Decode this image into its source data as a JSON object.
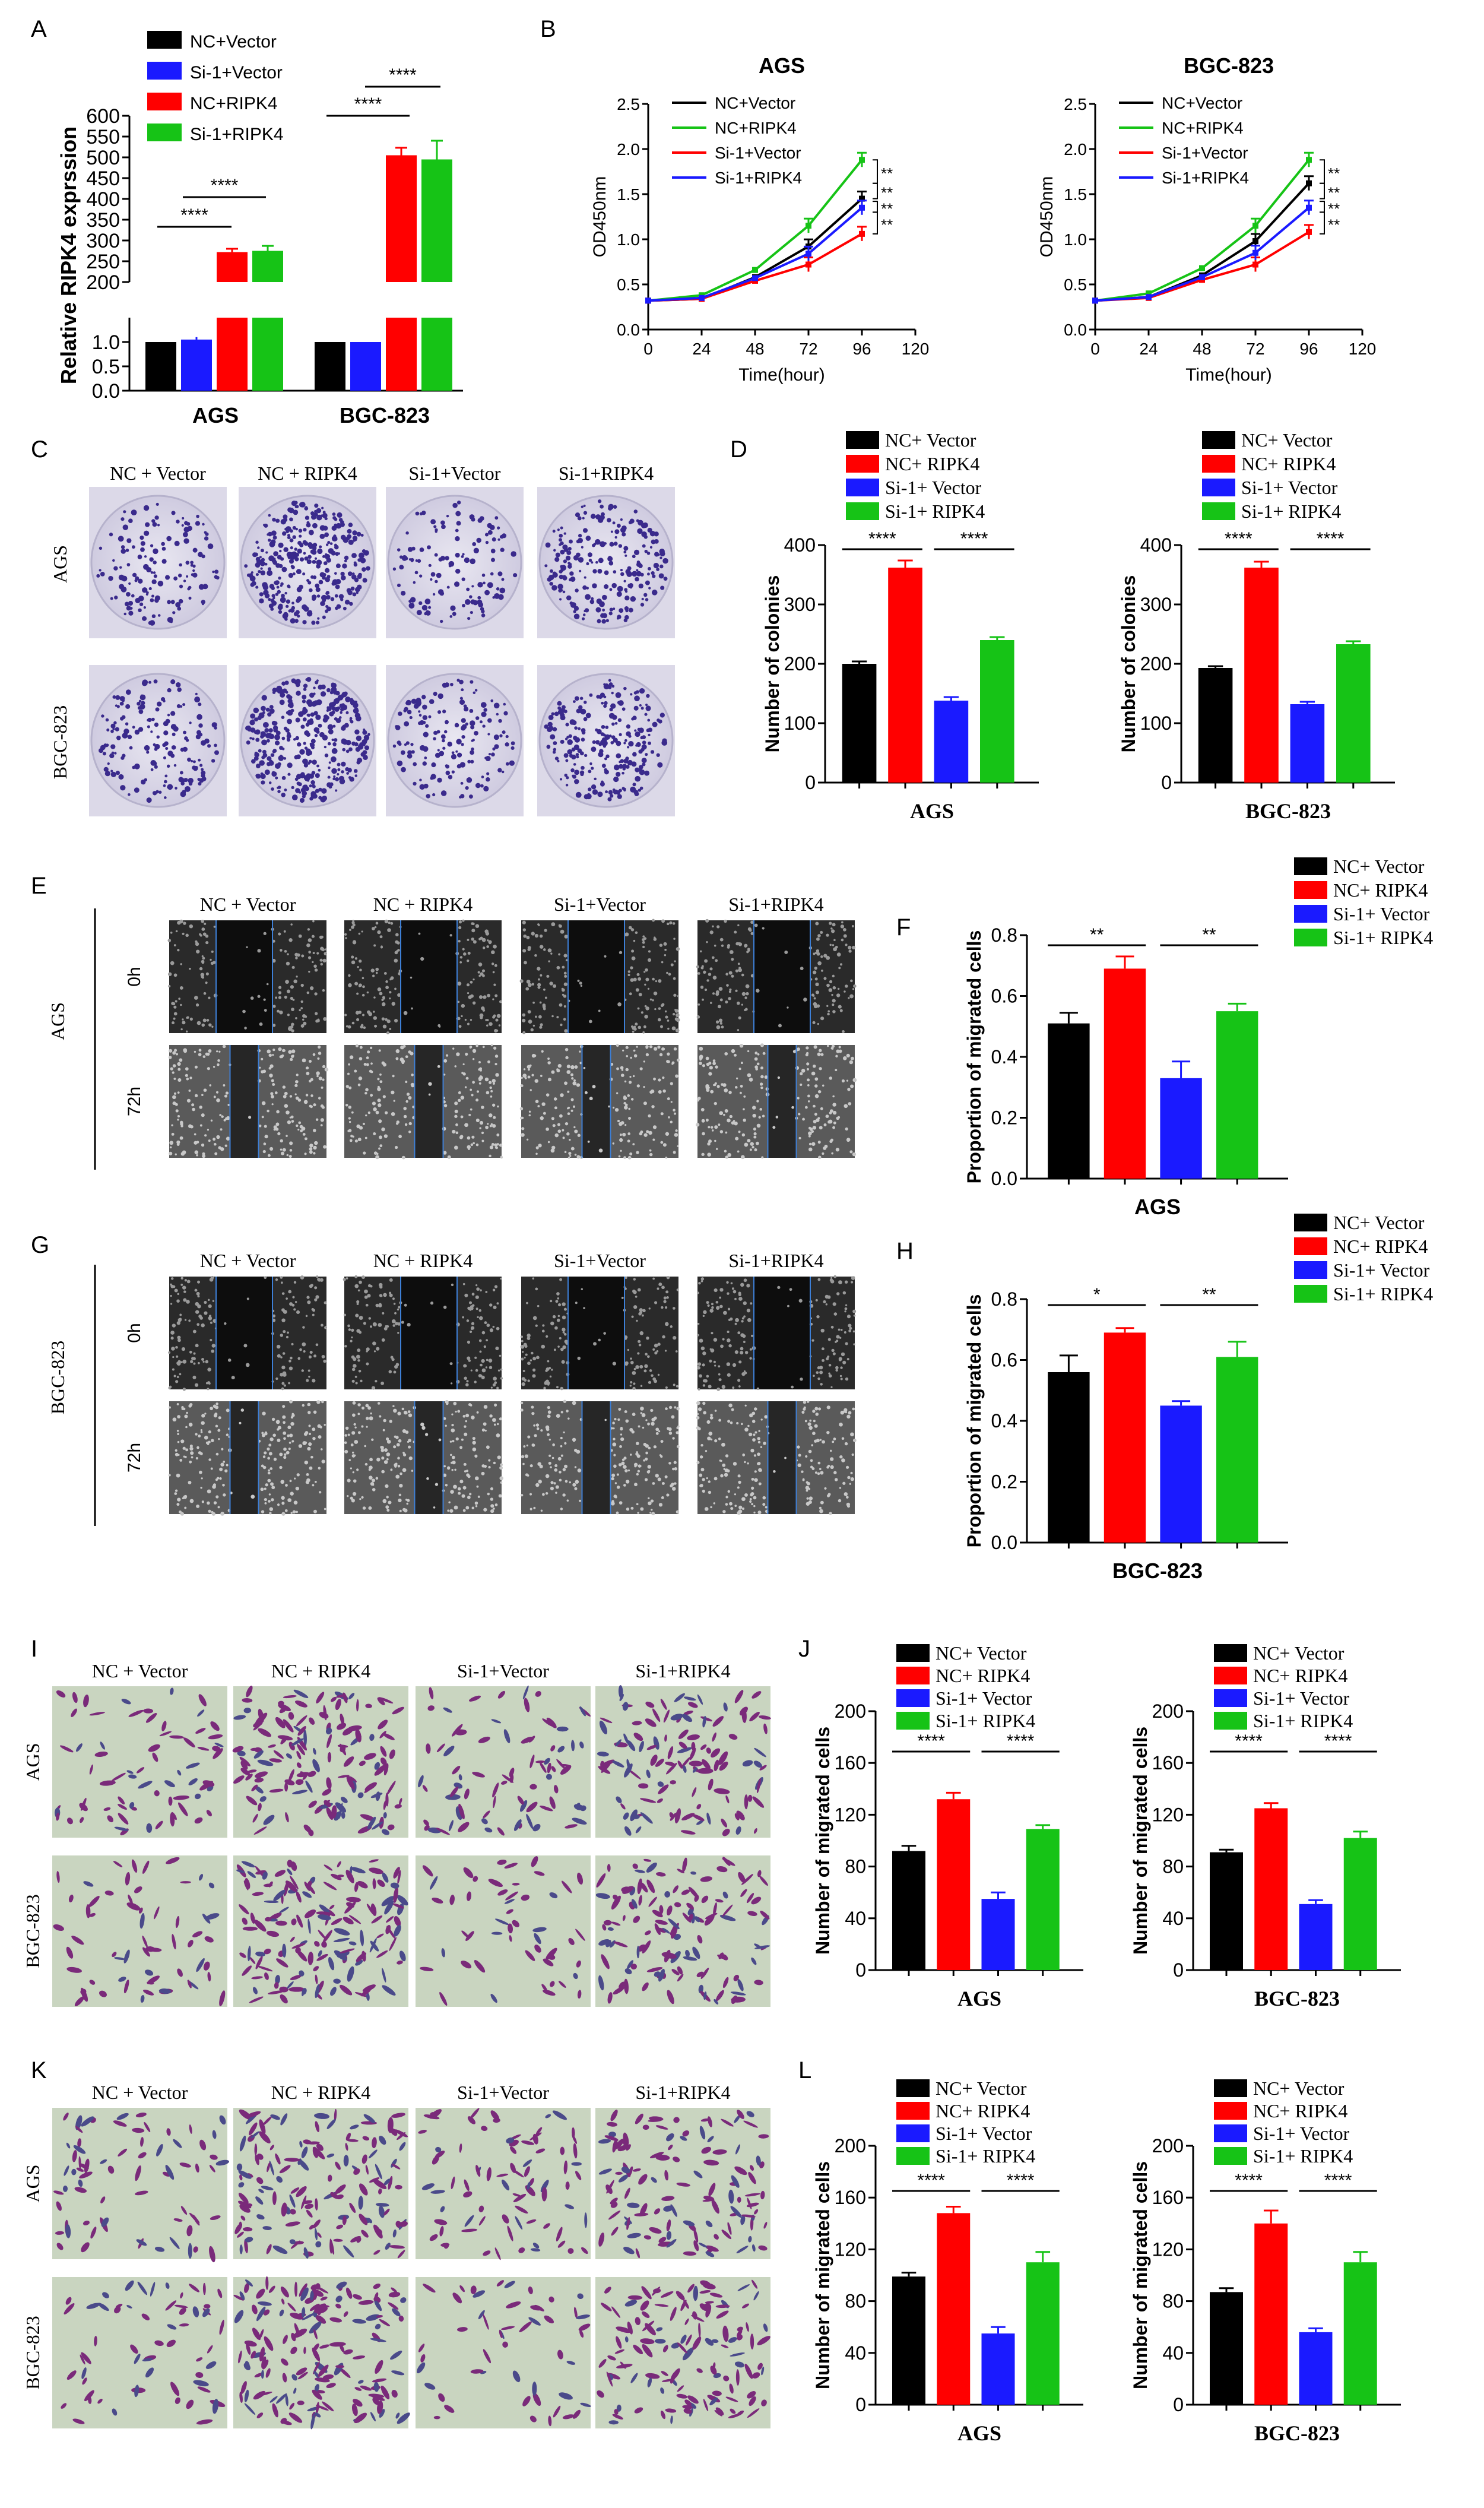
{
  "colors": {
    "black": "#000000",
    "red": "#ff0000",
    "blue": "#1a1aff",
    "green": "#16c316"
  },
  "panels": {
    "A": {
      "letter": "A",
      "ylabel": "Relative RIPK4 exprssion"
    },
    "B": {
      "letter": "B"
    },
    "C": {
      "letter": "C",
      "cols": [
        "NC + Vector",
        "NC + RIPK4",
        "Si-1+Vector",
        "Si-1+RIPK4"
      ],
      "rows": [
        "AGS",
        "BGC-823"
      ]
    },
    "D": {
      "letter": "D"
    },
    "E": {
      "letter": "E",
      "cell": "AGS",
      "cols": [
        "NC + Vector",
        "NC + RIPK4",
        "Si-1+Vector",
        "Si-1+RIPK4"
      ],
      "rows": [
        "0h",
        "72h"
      ]
    },
    "F": {
      "letter": "F"
    },
    "G": {
      "letter": "G",
      "cell": "BGC-823",
      "cols": [
        "NC + Vector",
        "NC + RIPK4",
        "Si-1+Vector",
        "Si-1+RIPK4"
      ],
      "rows": [
        "0h",
        "72h"
      ]
    },
    "H": {
      "letter": "H"
    },
    "I": {
      "letter": "I",
      "cols": [
        "NC + Vector",
        "NC + RIPK4",
        "Si-1+Vector",
        "Si-1+RIPK4"
      ],
      "rows": [
        "AGS",
        "BGC-823"
      ]
    },
    "J": {
      "letter": "J"
    },
    "K": {
      "letter": "K",
      "cols": [
        "NC + Vector",
        "NC + RIPK4",
        "Si-1+Vector",
        "Si-1+RIPK4"
      ],
      "rows": [
        "AGS",
        "BGC-823"
      ]
    },
    "L": {
      "letter": "L"
    }
  },
  "chart_data": [
    {
      "panel": "A",
      "type": "bar",
      "groups": [
        "AGS",
        "BGC-823"
      ],
      "series": [
        {
          "name": "NC+Vector",
          "values": [
            1.0,
            1.0
          ],
          "err": [
            0,
            0
          ]
        },
        {
          "name": "Si-1+Vector",
          "values": [
            1.05,
            1.0
          ],
          "err": [
            0.05,
            0
          ]
        },
        {
          "name": "NC+RIPK4",
          "values": [
            272,
            505
          ],
          "err": [
            8,
            18
          ]
        },
        {
          "name": "Si-1+RIPK4",
          "values": [
            275,
            495
          ],
          "err": [
            12,
            45
          ]
        }
      ],
      "ylabel": "Relative RIPK4 exprssion",
      "broken_axis": {
        "lower": [
          0,
          1.5
        ],
        "upper": [
          200,
          600
        ]
      },
      "yticks_lower": [
        "0.0",
        "0.5",
        "1.0"
      ],
      "yticks_upper": [
        "200",
        "250",
        "300",
        "350",
        "400",
        "450",
        "500",
        "550",
        "600"
      ],
      "sig": [
        "****",
        "****",
        "****",
        "****"
      ]
    },
    {
      "panel": "B1",
      "type": "line",
      "title": "AGS",
      "xlabel": "Time(hour)",
      "ylabel": "OD450nm",
      "x": [
        0,
        24,
        48,
        72,
        96
      ],
      "xticks": [
        "0",
        "24",
        "48",
        "72",
        "96",
        "120"
      ],
      "yticks": [
        "0.0",
        "0.5",
        "1.0",
        "1.5",
        "2.0",
        "2.5"
      ],
      "xlim": [
        0,
        120
      ],
      "ylim": [
        0,
        2.5
      ],
      "series": [
        {
          "name": "NC+Vector",
          "color": "#000000",
          "values": [
            0.32,
            0.34,
            0.58,
            0.92,
            1.45
          ]
        },
        {
          "name": "NC+RIPK4",
          "color": "#16c316",
          "values": [
            0.32,
            0.38,
            0.66,
            1.15,
            1.88
          ]
        },
        {
          "name": "Si-1+Vector",
          "color": "#ff0000",
          "values": [
            0.32,
            0.34,
            0.54,
            0.72,
            1.06
          ]
        },
        {
          "name": "Si-1+RIPK4",
          "color": "#1a1aff",
          "values": [
            0.32,
            0.35,
            0.57,
            0.84,
            1.35
          ]
        }
      ],
      "sig": [
        "**",
        "**",
        "**",
        "**"
      ]
    },
    {
      "panel": "B2",
      "type": "line",
      "title": "BGC-823",
      "xlabel": "Time(hour)",
      "ylabel": "OD450nm",
      "x": [
        0,
        24,
        48,
        72,
        96
      ],
      "xticks": [
        "0",
        "24",
        "48",
        "72",
        "96",
        "120"
      ],
      "yticks": [
        "0.0",
        "0.5",
        "1.0",
        "1.5",
        "2.0",
        "2.5"
      ],
      "xlim": [
        0,
        120
      ],
      "ylim": [
        0,
        2.5
      ],
      "series": [
        {
          "name": "NC+Vector",
          "color": "#000000",
          "values": [
            0.32,
            0.36,
            0.6,
            0.98,
            1.62
          ]
        },
        {
          "name": "NC+RIPK4",
          "color": "#16c316",
          "values": [
            0.32,
            0.4,
            0.68,
            1.15,
            1.88
          ]
        },
        {
          "name": "Si-1+Vector",
          "color": "#ff0000",
          "values": [
            0.32,
            0.35,
            0.55,
            0.72,
            1.08
          ]
        },
        {
          "name": "Si-1+RIPK4",
          "color": "#1a1aff",
          "values": [
            0.32,
            0.36,
            0.58,
            0.85,
            1.35
          ]
        }
      ],
      "sig": [
        "**",
        "**",
        "**",
        "**"
      ]
    },
    {
      "panel": "D1",
      "type": "bar",
      "xlabel": "AGS",
      "ylabel": "Number of colonies",
      "legend": [
        "NC+ Vector",
        "NC+ RIPK4",
        "Si-1+ Vector",
        "Si-1+ RIPK4"
      ],
      "values": [
        200,
        362,
        138,
        240
      ],
      "err": [
        4,
        12,
        6,
        5
      ],
      "ylim": [
        0,
        400
      ],
      "yticks": [
        "0",
        "100",
        "200",
        "300",
        "400"
      ],
      "sig": [
        "****",
        "****"
      ]
    },
    {
      "panel": "D2",
      "type": "bar",
      "xlabel": "BGC-823",
      "ylabel": "Number of colonies",
      "legend": [
        "NC+ Vector",
        "NC+ RIPK4",
        "Si-1+ Vector",
        "Si-1+ RIPK4"
      ],
      "values": [
        193,
        362,
        132,
        233
      ],
      "err": [
        3,
        10,
        4,
        5
      ],
      "ylim": [
        0,
        400
      ],
      "yticks": [
        "0",
        "100",
        "200",
        "300",
        "400"
      ],
      "sig": [
        "****",
        "****"
      ]
    },
    {
      "panel": "F",
      "type": "bar",
      "xlabel": "AGS",
      "ylabel": "Proportion of migrated cells",
      "legend": [
        "NC+ Vector",
        "NC+ RIPK4",
        "Si-1+ Vector",
        "Si-1+ RIPK4"
      ],
      "values": [
        0.51,
        0.69,
        0.33,
        0.55
      ],
      "err": [
        0.035,
        0.04,
        0.055,
        0.025
      ],
      "ylim": [
        0,
        0.8
      ],
      "yticks": [
        "0.0",
        "0.2",
        "0.4",
        "0.6",
        "0.8"
      ],
      "sig": [
        "**",
        "**"
      ]
    },
    {
      "panel": "H",
      "type": "bar",
      "xlabel": "BGC-823",
      "ylabel": "Proportion of migrated cells",
      "legend": [
        "NC+ Vector",
        "NC+ RIPK4",
        "Si-1+ Vector",
        "Si-1+ RIPK4"
      ],
      "values": [
        0.56,
        0.69,
        0.45,
        0.61
      ],
      "err": [
        0.055,
        0.015,
        0.015,
        0.05
      ],
      "ylim": [
        0,
        0.8
      ],
      "yticks": [
        "0.0",
        "0.2",
        "0.4",
        "0.6",
        "0.8"
      ],
      "sig": [
        "*",
        "**"
      ]
    },
    {
      "panel": "J1",
      "type": "bar",
      "xlabel": "AGS",
      "ylabel": "Number of migrated cells",
      "legend": [
        "NC+ Vector",
        "NC+ RIPK4",
        "Si-1+ Vector",
        "Si-1+ RIPK4"
      ],
      "values": [
        92,
        132,
        55,
        109
      ],
      "err": [
        4,
        5,
        5,
        3
      ],
      "ylim": [
        0,
        200
      ],
      "yticks": [
        "0",
        "40",
        "80",
        "120",
        "160",
        "200"
      ],
      "sig": [
        "****",
        "****"
      ]
    },
    {
      "panel": "J2",
      "type": "bar",
      "xlabel": "BGC-823",
      "ylabel": "Number of migrated cells",
      "legend": [
        "NC+ Vector",
        "NC+ RIPK4",
        "Si-1+ Vector",
        "Si-1+ RIPK4"
      ],
      "values": [
        91,
        125,
        51,
        102
      ],
      "err": [
        2,
        4,
        3,
        5
      ],
      "ylim": [
        0,
        200
      ],
      "yticks": [
        "0",
        "40",
        "80",
        "120",
        "160",
        "200"
      ],
      "sig": [
        "****",
        "****"
      ]
    },
    {
      "panel": "L1",
      "type": "bar",
      "xlabel": "AGS",
      "ylabel": "Number of migrated cells",
      "legend": [
        "NC+ Vector",
        "NC+ RIPK4",
        "Si-1+ Vector",
        "Si-1+ RIPK4"
      ],
      "values": [
        99,
        148,
        55,
        110
      ],
      "err": [
        3,
        5,
        5,
        8
      ],
      "ylim": [
        0,
        200
      ],
      "yticks": [
        "0",
        "40",
        "80",
        "120",
        "160",
        "200"
      ],
      "sig": [
        "****",
        "****"
      ]
    },
    {
      "panel": "L2",
      "type": "bar",
      "xlabel": "BGC-823",
      "ylabel": "Number of migrated cells",
      "legend": [
        "NC+ Vector",
        "NC+ RIPK4",
        "Si-1+ Vector",
        "Si-1+ RIPK4"
      ],
      "values": [
        87,
        140,
        56,
        110
      ],
      "err": [
        3,
        10,
        3,
        8
      ],
      "ylim": [
        0,
        200
      ],
      "yticks": [
        "0",
        "40",
        "80",
        "120",
        "160",
        "200"
      ],
      "sig": [
        "****",
        "****"
      ]
    }
  ]
}
